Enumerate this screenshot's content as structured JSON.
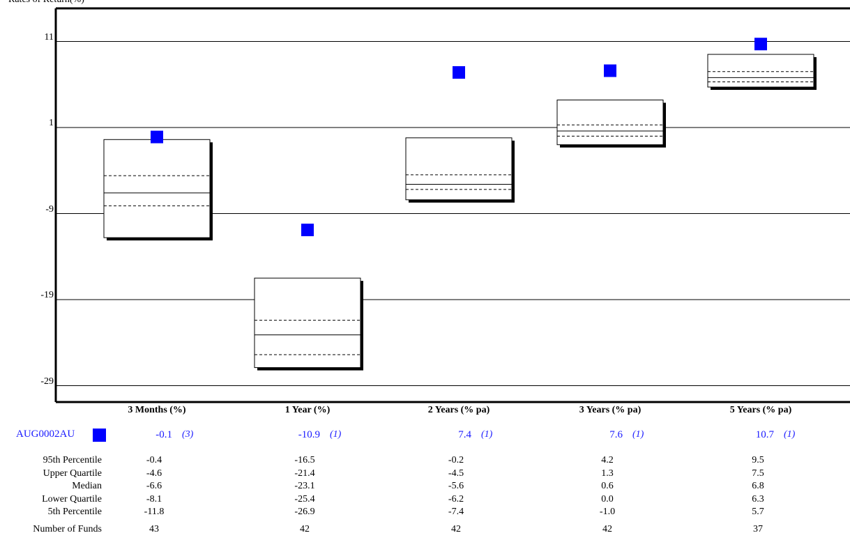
{
  "chart_data": {
    "type": "box",
    "ylabel": "Rates of Return(%)",
    "yticks": [
      11,
      1,
      -9,
      -19,
      -29
    ],
    "ylim": [
      -31,
      14.6
    ],
    "grid": true,
    "categories": [
      "3 Months (%)",
      "1 Year (%)",
      "2 Years (% pa)",
      "3 Years (% pa)",
      "5 Years (% pa)"
    ],
    "fund": {
      "name": "AUG0002AU",
      "color": "#0000ff",
      "values": [
        -0.1,
        -10.9,
        7.4,
        7.6,
        10.7
      ],
      "ranks": [
        "(3)",
        "(1)",
        "(1)",
        "(1)",
        "(1)"
      ]
    },
    "stat_labels": [
      "95th Percentile",
      "Upper Quartile",
      "Median",
      "Lower Quartile",
      "5th Percentile"
    ],
    "stats": [
      {
        "p95": "-0.4",
        "uq": "-4.6",
        "median": "-6.6",
        "lq": "-8.1",
        "p5": "-11.8"
      },
      {
        "p95": "-16.5",
        "uq": "-21.4",
        "median": "-23.1",
        "lq": "-25.4",
        "p5": "-26.9"
      },
      {
        "p95": "-0.2",
        "uq": "-4.5",
        "median": "-5.6",
        "lq": "-6.2",
        "p5": "-7.4"
      },
      {
        "p95": "4.2",
        "uq": "1.3",
        "median": "0.6",
        "lq": "0.0",
        "p5": "-1.0"
      },
      {
        "p95": "9.5",
        "uq": "7.5",
        "median": "6.8",
        "lq": "6.3",
        "p5": "5.7"
      }
    ],
    "count_label": "Number of Funds",
    "counts": [
      "43",
      "42",
      "42",
      "42",
      "37"
    ]
  }
}
